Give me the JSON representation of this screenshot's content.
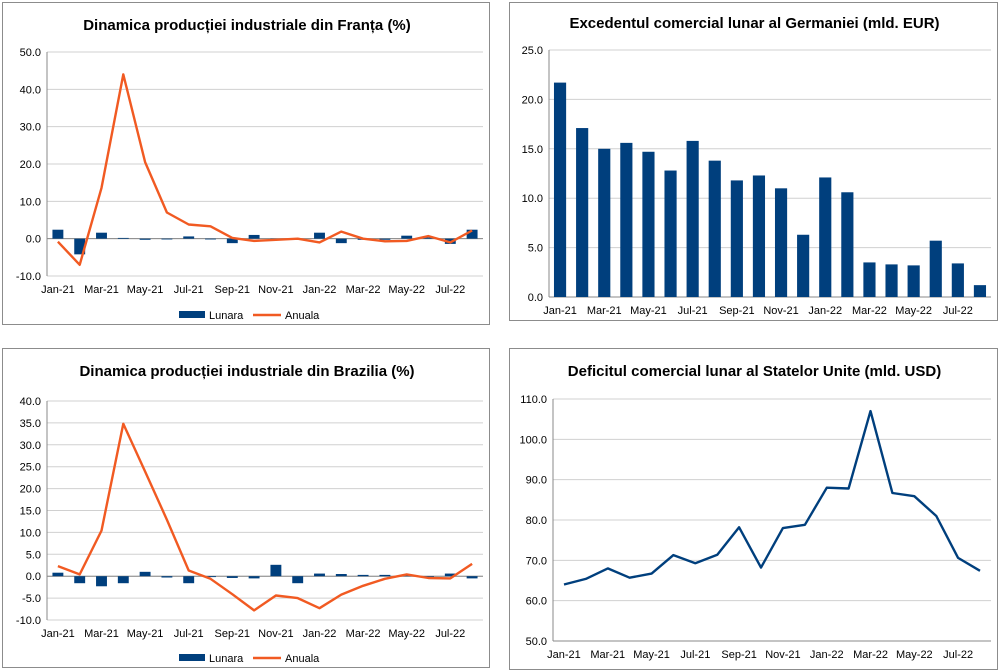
{
  "colors": {
    "navy": "#003f7d",
    "orange": "#f15a22",
    "grid": "#d0d0d0",
    "axis": "#888888"
  },
  "chart_data": [
    {
      "id": "p1",
      "type": "bar+line",
      "title": "Dinamica producției industriale din Franța (%)",
      "months": [
        "Jan-21",
        "Feb-21",
        "Mar-21",
        "Apr-21",
        "May-21",
        "Jun-21",
        "Jul-21",
        "Aug-21",
        "Sep-21",
        "Oct-21",
        "Nov-21",
        "Dec-21",
        "Jan-22",
        "Feb-22",
        "Mar-22",
        "Apr-22",
        "May-22",
        "Jun-22",
        "Jul-22",
        "Aug-22"
      ],
      "xtick_labels": [
        "Jan-21",
        "Mar-21",
        "May-21",
        "Jul-21",
        "Sep-21",
        "Nov-21",
        "Jan-22",
        "Mar-22",
        "May-22",
        "Jul-22"
      ],
      "ylim": [
        -10,
        50
      ],
      "yticks": [
        "-10.0",
        "0.0",
        "10.0",
        "20.0",
        "30.0",
        "40.0",
        "50.0"
      ],
      "series": [
        {
          "name": "Lunara",
          "kind": "bar",
          "values": [
            2.4,
            -4.2,
            1.6,
            0.2,
            -0.3,
            -0.2,
            0.6,
            -0.1,
            -1.2,
            1.0,
            -0.4,
            -0.1,
            1.6,
            -1.2,
            -0.3,
            -0.3,
            0.8,
            0.3,
            -1.4,
            2.4
          ]
        },
        {
          "name": "Anuala",
          "kind": "line",
          "values": [
            -0.8,
            -7.0,
            13.6,
            44.0,
            20.5,
            7.0,
            3.8,
            3.3,
            0.2,
            -0.6,
            -0.3,
            0.0,
            -1.0,
            1.9,
            0.0,
            -0.7,
            -0.6,
            0.7,
            -1.0,
            2.2
          ]
        }
      ]
    },
    {
      "id": "p2",
      "type": "bar",
      "title": "Excedentul comercial lunar al Germaniei (mld. EUR)",
      "months": [
        "Jan-21",
        "Feb-21",
        "Mar-21",
        "Apr-21",
        "May-21",
        "Jun-21",
        "Jul-21",
        "Aug-21",
        "Sep-21",
        "Oct-21",
        "Nov-21",
        "Dec-21",
        "Jan-22",
        "Feb-22",
        "Mar-22",
        "Apr-22",
        "May-22",
        "Jun-22",
        "Jul-22",
        "Aug-22"
      ],
      "xtick_labels": [
        "Jan-21",
        "Mar-21",
        "May-21",
        "Jul-21",
        "Sep-21",
        "Nov-21",
        "Jan-22",
        "Mar-22",
        "May-22",
        "Jul-22"
      ],
      "ylim": [
        0,
        25
      ],
      "yticks": [
        "0.0",
        "5.0",
        "10.0",
        "15.0",
        "20.0",
        "25.0"
      ],
      "series": [
        {
          "name": "Excedent",
          "kind": "bar",
          "values": [
            21.7,
            17.1,
            15.0,
            15.6,
            14.7,
            12.8,
            15.8,
            13.8,
            11.8,
            12.3,
            11.0,
            6.3,
            12.1,
            10.6,
            3.5,
            3.3,
            3.2,
            5.7,
            3.4,
            1.2
          ]
        }
      ]
    },
    {
      "id": "p3",
      "type": "bar+line",
      "title": "Dinamica producției industriale din Brazilia (%)",
      "months": [
        "Jan-21",
        "Feb-21",
        "Mar-21",
        "Apr-21",
        "May-21",
        "Jun-21",
        "Jul-21",
        "Aug-21",
        "Sep-21",
        "Oct-21",
        "Nov-21",
        "Dec-21",
        "Jan-22",
        "Feb-22",
        "Mar-22",
        "Apr-22",
        "May-22",
        "Jun-22",
        "Jul-22",
        "Aug-22"
      ],
      "xtick_labels": [
        "Jan-21",
        "Mar-21",
        "May-21",
        "Jul-21",
        "Sep-21",
        "Nov-21",
        "Jan-22",
        "Mar-22",
        "May-22",
        "Jul-22"
      ],
      "ylim": [
        -10,
        40
      ],
      "yticks": [
        "-10.0",
        "-5.0",
        "0.0",
        "5.0",
        "10.0",
        "15.0",
        "20.0",
        "25.0",
        "30.0",
        "35.0",
        "40.0"
      ],
      "series": [
        {
          "name": "Lunara",
          "kind": "bar",
          "values": [
            0.8,
            -1.6,
            -2.3,
            -1.6,
            1.0,
            -0.3,
            -1.6,
            -0.2,
            -0.4,
            -0.5,
            2.6,
            -1.6,
            0.6,
            0.5,
            0.3,
            0.3,
            0.3,
            -0.3,
            0.6,
            -0.5
          ]
        },
        {
          "name": "Anuala",
          "kind": "line",
          "values": [
            2.3,
            0.4,
            10.4,
            34.8,
            23.9,
            12.9,
            1.3,
            -0.6,
            -4.1,
            -7.8,
            -4.4,
            -5.0,
            -7.3,
            -4.2,
            -2.2,
            -0.6,
            0.4,
            -0.4,
            -0.5,
            2.8
          ]
        }
      ]
    },
    {
      "id": "p4",
      "type": "line",
      "title": "Deficitul comercial lunar al Statelor Unite (mld. USD)",
      "months": [
        "Jan-21",
        "Feb-21",
        "Mar-21",
        "Apr-21",
        "May-21",
        "Jun-21",
        "Jul-21",
        "Aug-21",
        "Sep-21",
        "Oct-21",
        "Nov-21",
        "Dec-21",
        "Jan-22",
        "Feb-22",
        "Mar-22",
        "Apr-22",
        "May-22",
        "Jun-22",
        "Jul-22",
        "Aug-22"
      ],
      "xtick_labels": [
        "Jan-21",
        "Mar-21",
        "May-21",
        "Jul-21",
        "Sep-21",
        "Nov-21",
        "Jan-22",
        "Mar-22",
        "May-22",
        "Jul-22"
      ],
      "ylim": [
        50,
        110
      ],
      "yticks": [
        "50.0",
        "60.0",
        "70.0",
        "80.0",
        "90.0",
        "100.0",
        "110.0"
      ],
      "series": [
        {
          "name": "Deficit",
          "kind": "line",
          "values": [
            64.0,
            65.4,
            68.0,
            65.7,
            66.7,
            71.3,
            69.3,
            71.4,
            78.2,
            68.2,
            78.0,
            78.8,
            88.0,
            87.8,
            107.0,
            86.7,
            85.9,
            81.0,
            70.6,
            67.4
          ]
        }
      ]
    }
  ],
  "legend_labels": {
    "bar": "Lunara",
    "line": "Anuala"
  }
}
